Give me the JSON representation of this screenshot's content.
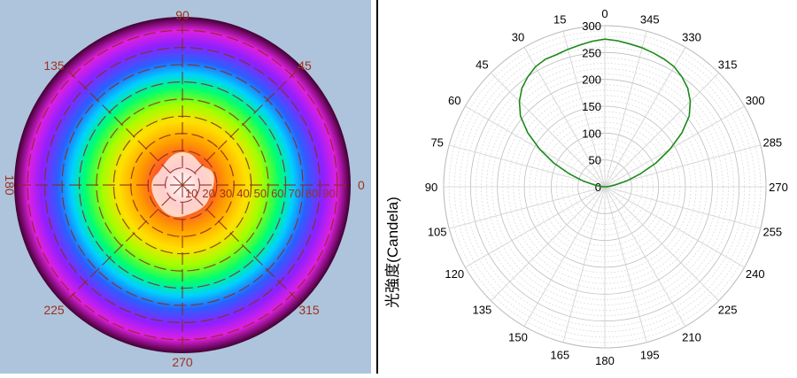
{
  "colors": {
    "left_background": "#aec4dc",
    "left_labels": "#a03020",
    "grid_line": "#8b2a1a",
    "polar_curve": "#1a8a1a",
    "polar_grid": "#c8c8c8"
  },
  "chart_data": [
    {
      "type": "heatmap",
      "subtype": "polar-contour",
      "angle_labels": [
        "0",
        "45",
        "90",
        "135",
        "180",
        "225",
        "270",
        "315"
      ],
      "radial_labels": [
        "10",
        "20",
        "30",
        "40",
        "50",
        "60",
        "70",
        "80",
        "90"
      ],
      "colormap": [
        "#ffffff",
        "#ff3a3a",
        "#ff9a00",
        "#ffe000",
        "#a0ff00",
        "#00ff70",
        "#00d0ff",
        "#2a60ff",
        "#9020ff",
        "#e020e0",
        "#400030"
      ]
    },
    {
      "type": "line",
      "subtype": "polar",
      "ylabel": "光強度(Candela)",
      "angle_labels": [
        "0",
        "15",
        "30",
        "45",
        "60",
        "75",
        "90",
        "105",
        "120",
        "135",
        "150",
        "165",
        "180",
        "195",
        "210",
        "225",
        "240",
        "255",
        "270",
        "285",
        "300",
        "315",
        "330",
        "345"
      ],
      "radial_ticks": [
        0,
        50,
        100,
        150,
        200,
        250,
        300
      ],
      "rlim": [
        0,
        300
      ],
      "grid": true,
      "series": [
        {
          "x": [
            0,
            5,
            10,
            15,
            20,
            25,
            30,
            35,
            40,
            45,
            50,
            55,
            60,
            65,
            70,
            75,
            80,
            85,
            90,
            270,
            275,
            280,
            285,
            290,
            295,
            300,
            305,
            310,
            315,
            320,
            325,
            330,
            335,
            340,
            345,
            350,
            355,
            360
          ],
          "values": [
            275,
            272,
            268,
            265,
            262,
            262,
            258,
            250,
            240,
            225,
            205,
            175,
            140,
            105,
            70,
            42,
            20,
            8,
            2,
            2,
            8,
            20,
            42,
            70,
            105,
            140,
            175,
            205,
            225,
            240,
            250,
            258,
            262,
            265,
            268,
            270,
            273,
            275
          ]
        }
      ]
    }
  ]
}
